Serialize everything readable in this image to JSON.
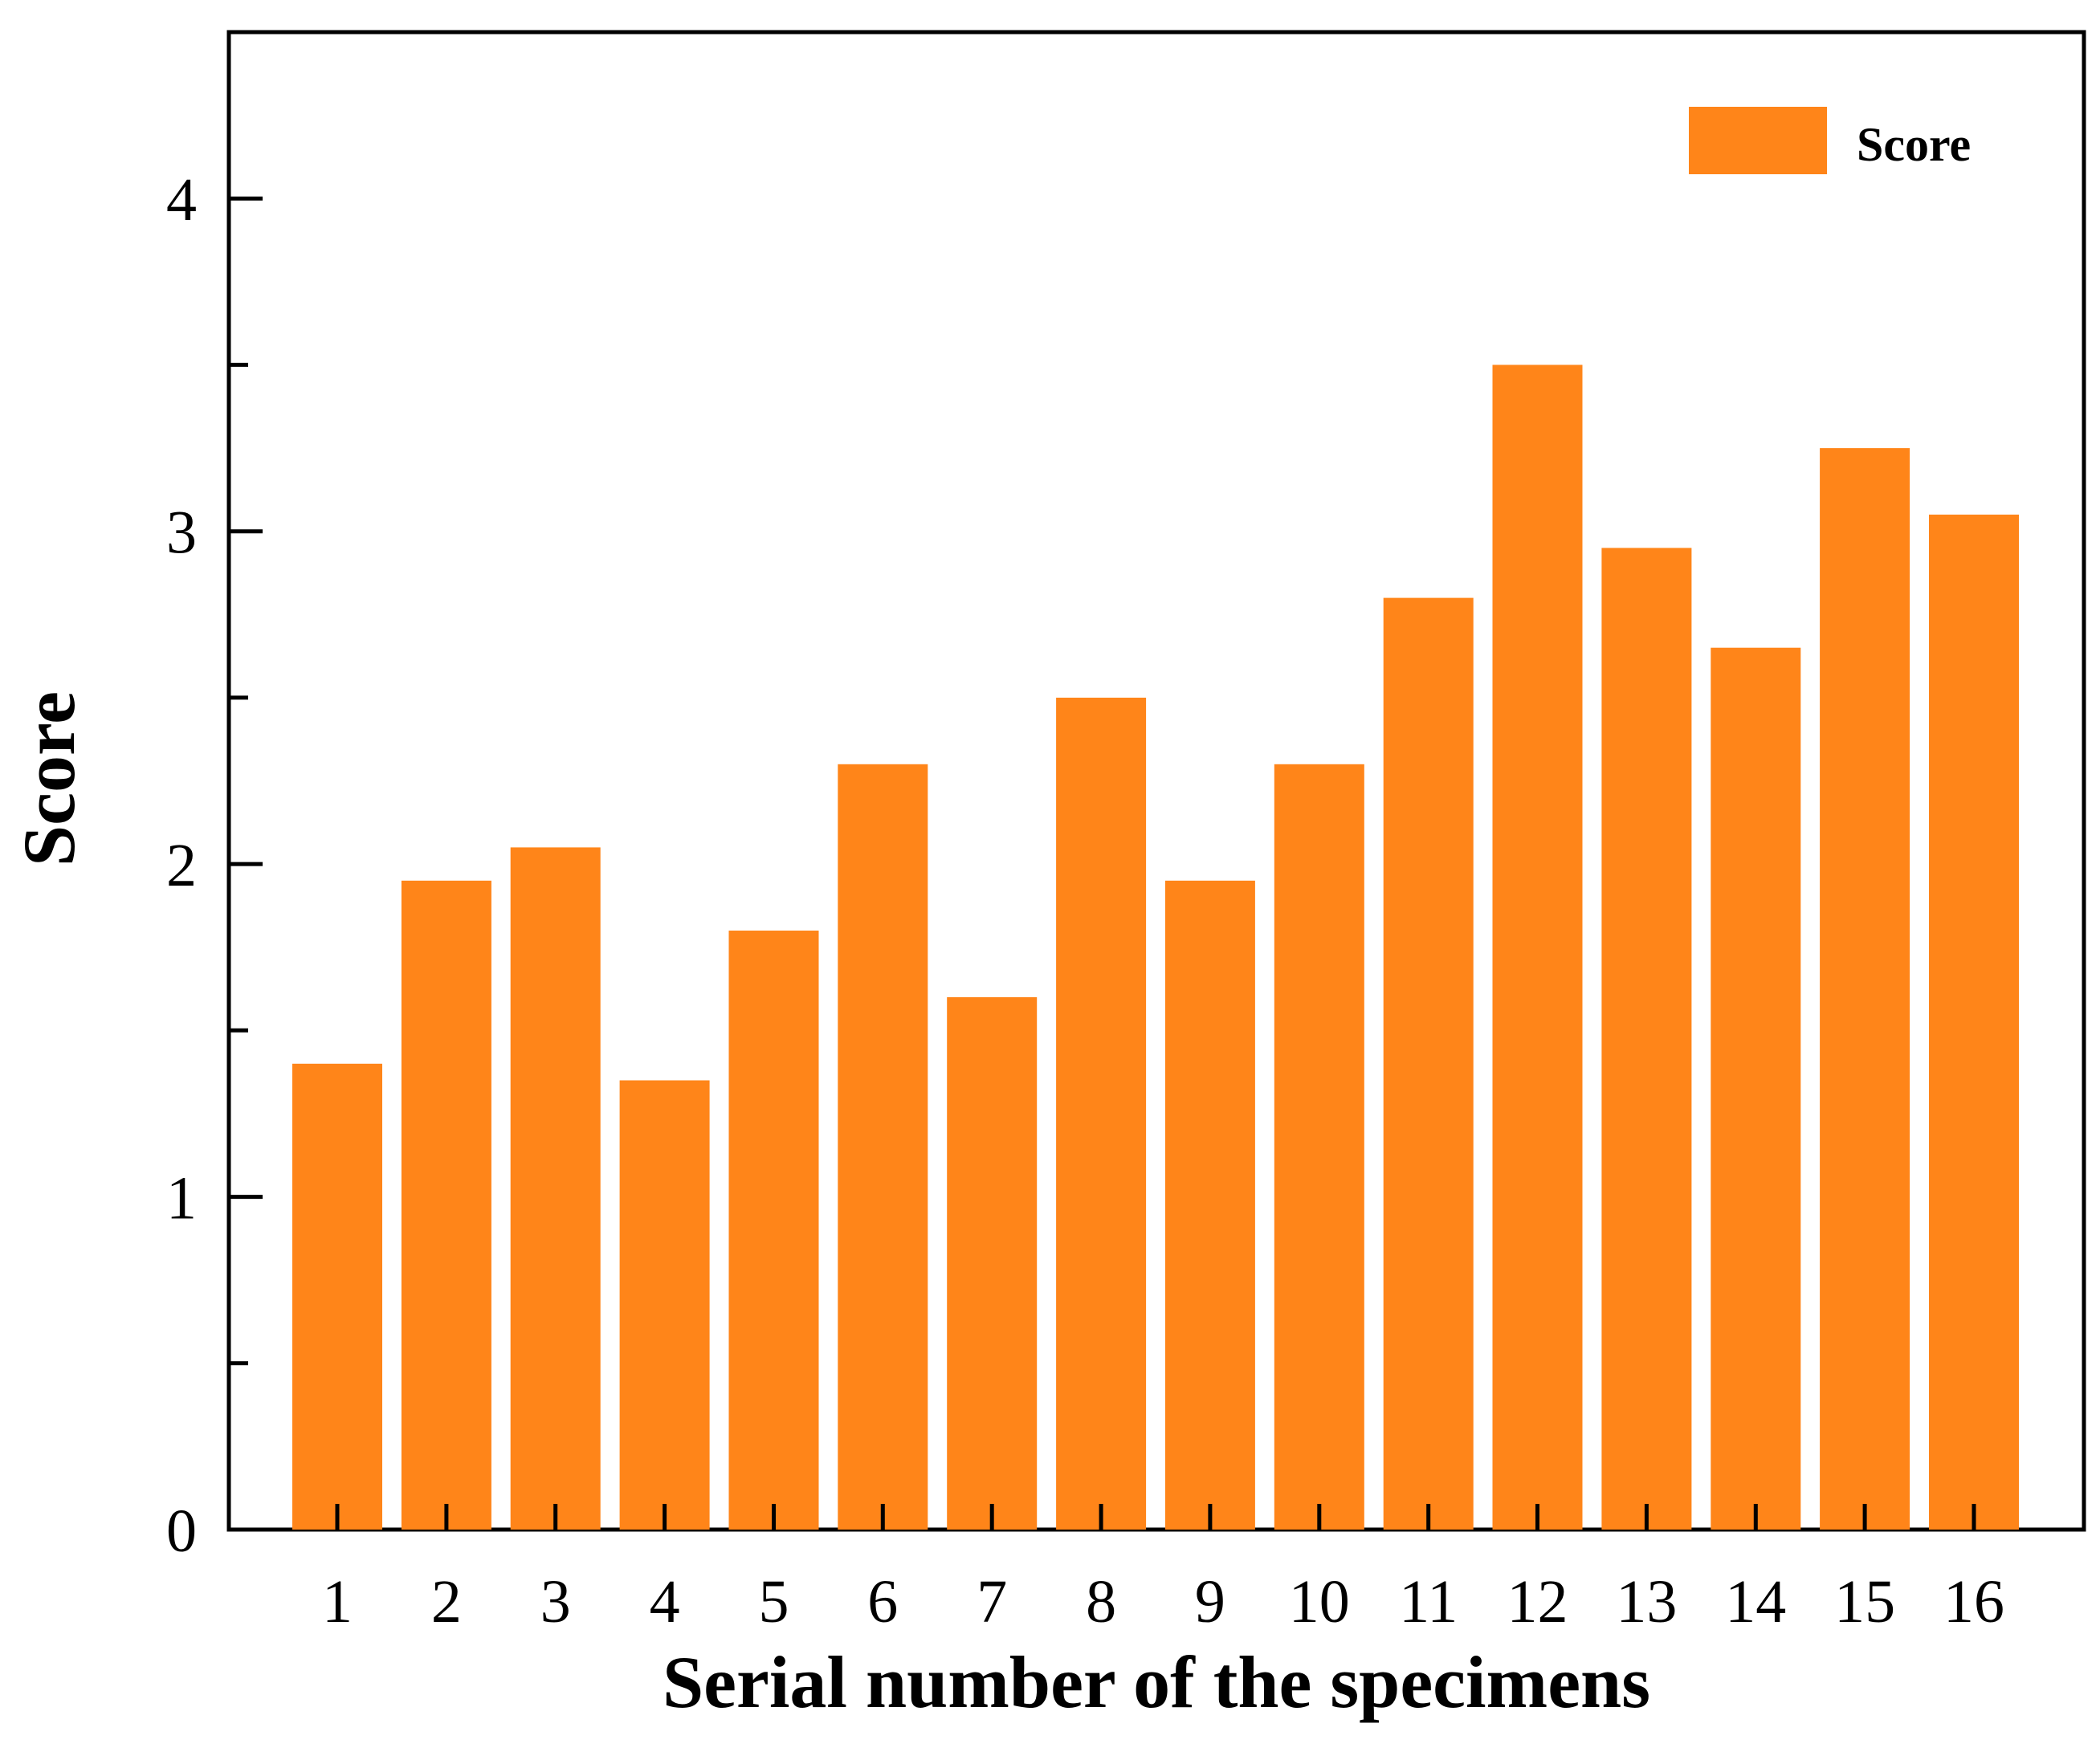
{
  "chart_data": {
    "type": "bar",
    "categories": [
      "1",
      "2",
      "3",
      "4",
      "5",
      "6",
      "7",
      "8",
      "9",
      "10",
      "11",
      "12",
      "13",
      "14",
      "15",
      "16"
    ],
    "series": [
      {
        "name": "Score",
        "values": [
          1.4,
          1.95,
          2.05,
          1.35,
          1.8,
          2.3,
          1.6,
          2.5,
          1.95,
          2.3,
          2.8,
          3.5,
          2.95,
          2.65,
          3.25,
          3.05
        ],
        "color": "#FF8519"
      }
    ],
    "xlabel": "Serial number of the specimens",
    "ylabel": "Score",
    "ylim": [
      0,
      4.5
    ],
    "yticks": [
      0,
      1,
      2,
      3,
      4
    ],
    "yticks_minor": [
      0.5,
      1.5,
      2.5,
      3.5
    ],
    "grid": false,
    "legend": {
      "position": "top-right",
      "entries": [
        "Score"
      ]
    }
  }
}
